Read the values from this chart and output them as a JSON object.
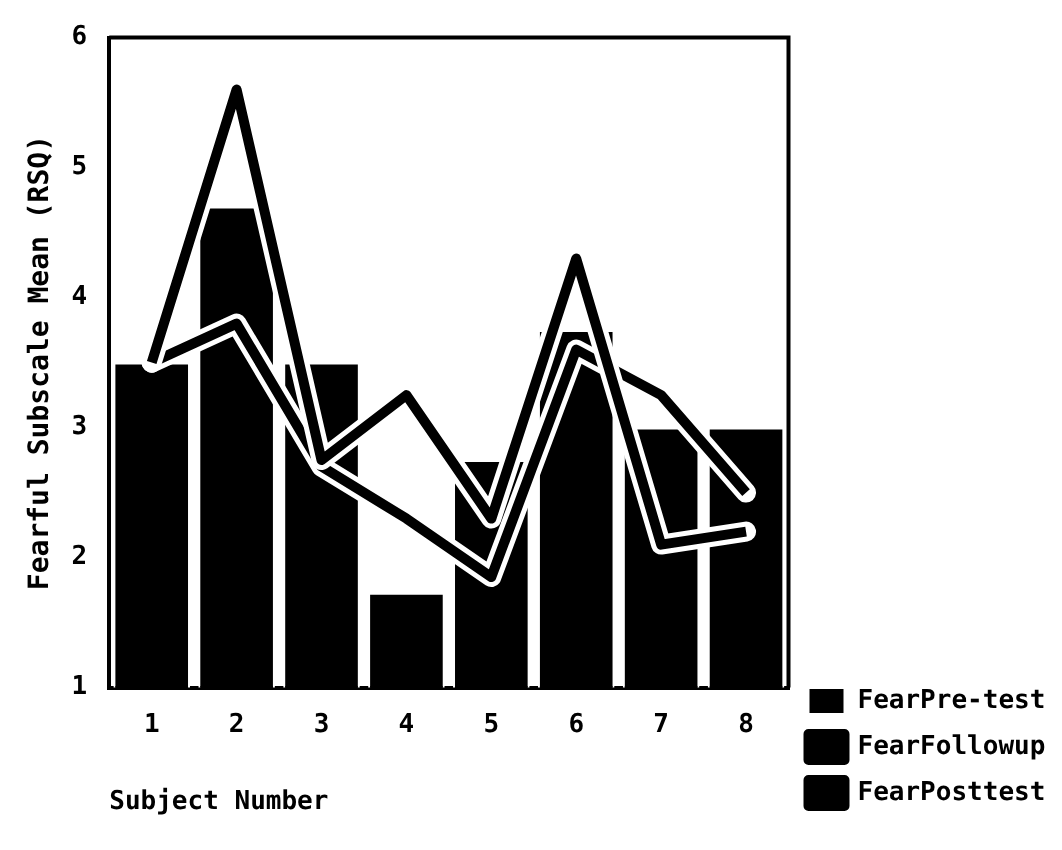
{
  "chart_data": {
    "type": "bar",
    "xlabel": "Subject Number",
    "ylabel": "Fearful Subscale Mean (RSQ)",
    "categories": [
      "1",
      "2",
      "3",
      "4",
      "5",
      "6",
      "7",
      "8"
    ],
    "series": [
      {
        "name": "FearPosttest",
        "type": "line",
        "color": "#000000",
        "values": [
          3.5,
          5.6,
          2.75,
          3.25,
          2.3,
          4.3,
          2.1,
          2.2
        ]
      },
      {
        "name": "FearFollowup",
        "type": "line",
        "color": "#000000",
        "values": [
          3.5,
          3.8,
          2.7,
          2.3,
          1.85,
          3.6,
          3.25,
          2.5
        ]
      },
      {
        "name": "FearPre-test",
        "type": "bar",
        "color": "#000000",
        "values": [
          3.5,
          4.7,
          3.5,
          1.73,
          2.75,
          3.75,
          3.0,
          3.0
        ]
      }
    ],
    "ylim": [
      1,
      6
    ],
    "yticks": [
      1,
      2,
      3,
      4,
      5,
      6
    ],
    "grid": false,
    "legend": "right",
    "marker": "none"
  }
}
